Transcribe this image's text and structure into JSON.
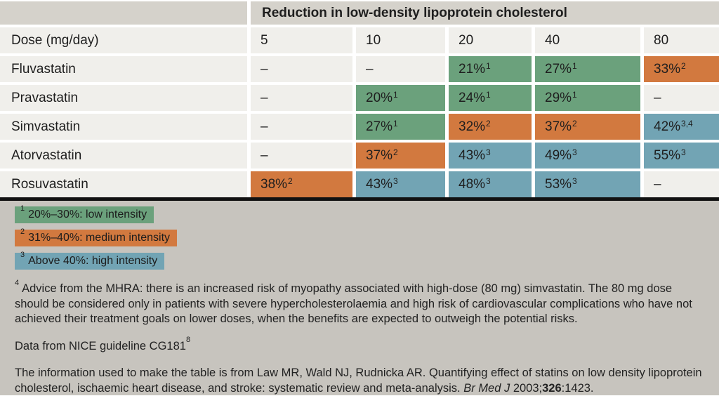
{
  "colors": {
    "green": "#6ba17c",
    "orange": "#d2793f",
    "blue": "#72a4b4",
    "header_gray": "#d5d2cb",
    "row_bg": "#f0efeb",
    "notes_bg": "#c7c4be",
    "divider": "#111111"
  },
  "table": {
    "header": "Reduction in low-density lipoprotein cholesterol",
    "dose_label": "Dose (mg/day)",
    "doses": [
      "5",
      "10",
      "20",
      "40",
      "80"
    ],
    "rows": [
      {
        "label": "Fluvastatin",
        "cells": [
          {
            "v": "–",
            "s": "",
            "i": "none"
          },
          {
            "v": "–",
            "s": "",
            "i": "none"
          },
          {
            "v": "21%",
            "s": "1",
            "i": "low"
          },
          {
            "v": "27%",
            "s": "1",
            "i": "low"
          },
          {
            "v": "33%",
            "s": "2",
            "i": "medium"
          }
        ]
      },
      {
        "label": "Pravastatin",
        "cells": [
          {
            "v": "–",
            "s": "",
            "i": "none"
          },
          {
            "v": "20%",
            "s": "1",
            "i": "low"
          },
          {
            "v": "24%",
            "s": "1",
            "i": "low"
          },
          {
            "v": "29%",
            "s": "1",
            "i": "low"
          },
          {
            "v": "–",
            "s": "",
            "i": "none"
          }
        ]
      },
      {
        "label": "Simvastatin",
        "cells": [
          {
            "v": "–",
            "s": "",
            "i": "none"
          },
          {
            "v": "27%",
            "s": "1",
            "i": "low"
          },
          {
            "v": "32%",
            "s": "2",
            "i": "medium"
          },
          {
            "v": "37%",
            "s": "2",
            "i": "medium"
          },
          {
            "v": "42%",
            "s": "3,4",
            "i": "high"
          }
        ]
      },
      {
        "label": "Atorvastatin",
        "cells": [
          {
            "v": "–",
            "s": "",
            "i": "none"
          },
          {
            "v": "37%",
            "s": "2",
            "i": "medium"
          },
          {
            "v": "43%",
            "s": "3",
            "i": "high"
          },
          {
            "v": "49%",
            "s": "3",
            "i": "high"
          },
          {
            "v": "55%",
            "s": "3",
            "i": "high"
          }
        ]
      },
      {
        "label": "Rosuvastatin",
        "cells": [
          {
            "v": "38%",
            "s": "2",
            "i": "medium"
          },
          {
            "v": "43%",
            "s": "3",
            "i": "high"
          },
          {
            "v": "48%",
            "s": "3",
            "i": "high"
          },
          {
            "v": "53%",
            "s": "3",
            "i": "high"
          },
          {
            "v": "–",
            "s": "",
            "i": "none"
          }
        ]
      }
    ]
  },
  "legend": [
    {
      "sup": "1",
      "text": "20%–30%: low intensity",
      "intensity": "low"
    },
    {
      "sup": "2",
      "text": "31%–40%: medium intensity",
      "intensity": "medium"
    },
    {
      "sup": "3",
      "text": "Above 40%: high intensity",
      "intensity": "high"
    }
  ],
  "notes": {
    "mhra_sup": "4",
    "mhra_text": "Advice from the MHRA: there is an increased risk of myopathy associated with high-dose (80 mg) simvastatin. The 80 mg dose should be considered only in patients with severe hypercholesterolaemia and high risk of cardiovascular complications who have not achieved their treatment goals on lower doses, when the benefits are expected to outweigh the potential risks.",
    "nice_text": "Data from NICE guideline CG181",
    "nice_sup": "8",
    "citation_before": "The information used to make the table is from Law MR, Wald NJ, Rudnicka AR. Quantifying effect of statins on low density lipoprotein cholesterol, ischaemic heart disease, and stroke: systematic review and meta-analysis. ",
    "citation_journal": "Br Med J",
    "citation_after_journal": " 2003;",
    "citation_volume": "326",
    "citation_tail": ":1423."
  }
}
